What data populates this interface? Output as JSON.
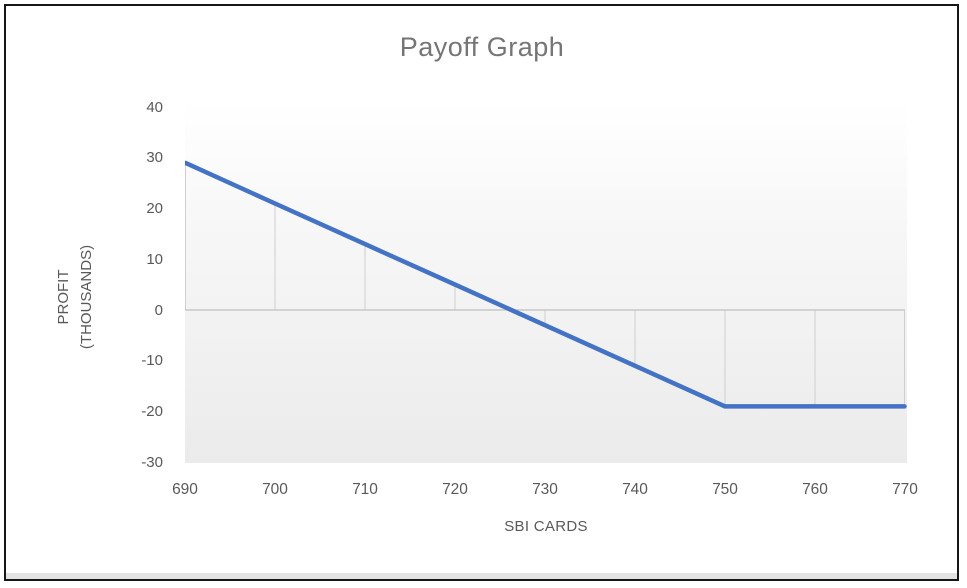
{
  "chart_data": {
    "type": "line",
    "title": "Payoff Graph",
    "xlabel": "SBI CARDS",
    "ylabel": "PROFIT (THOUSANDS)",
    "ylabel_lines": [
      "PROFIT",
      "(THOUSANDS)"
    ],
    "x": [
      690,
      700,
      710,
      720,
      730,
      740,
      750,
      760,
      770
    ],
    "values": [
      29,
      21,
      13,
      5,
      -3,
      -11,
      -19,
      -19,
      -19
    ],
    "xticks": [
      690,
      700,
      710,
      720,
      730,
      740,
      750,
      760,
      770
    ],
    "yticks": [
      40,
      30,
      20,
      10,
      0,
      -10,
      -20,
      -30
    ],
    "xlim": [
      690,
      770
    ],
    "ylim": [
      -30,
      40
    ],
    "legend": "none",
    "grid": "drop-lines-to-zero-axis",
    "line_color": "#4472C4",
    "axis_line_color": "#BFBFBF",
    "drop_line_color": "#CFCFCF",
    "tick_label_color": "#595959",
    "title_color": "#757575",
    "plot_bg_top": "#FFFFFF",
    "plot_bg_bottom": "#EBEBEB"
  },
  "frame": {
    "border_color": "#161616",
    "bottom_shade_color": "#E3E3E3"
  }
}
